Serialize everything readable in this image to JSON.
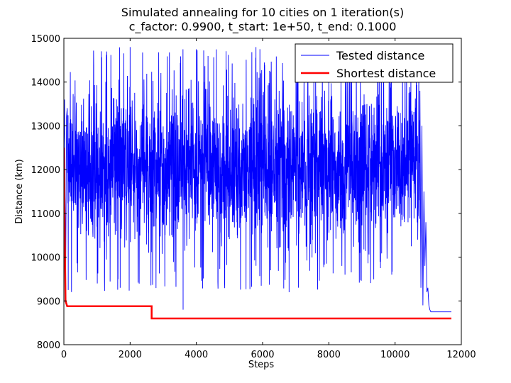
{
  "chart_data": {
    "type": "line",
    "title": "Simulated annealing for 10 cities on 1 iteration(s)",
    "subtitle": "c_factor: 0.9900, t_start: 1e+50, t_end: 0.1000",
    "xlabel": "Steps",
    "ylabel": "Distance (km)",
    "xlim": [
      0,
      12000
    ],
    "ylim": [
      8000,
      15000
    ],
    "x_ticks": [
      "0",
      "2000",
      "4000",
      "6000",
      "8000",
      "10000",
      "12000"
    ],
    "y_ticks": [
      "8000",
      "9000",
      "10000",
      "11000",
      "12000",
      "13000",
      "14000",
      "15000"
    ],
    "grid": false,
    "legend_position": "top-right",
    "series": [
      {
        "name": "Tested distance",
        "color": "#0000ff",
        "style": "noisy",
        "x_range": [
          0,
          11700
        ],
        "noise_band": [
          9200,
          14800
        ],
        "typical_band": [
          10500,
          13700
        ],
        "converge_start": 10750,
        "converged_value": 8750,
        "approx_points": [
          [
            0,
            12500
          ],
          [
            50,
            9000
          ],
          [
            100,
            13700
          ],
          [
            2000,
            14800
          ],
          [
            3600,
            8800
          ],
          [
            5800,
            14800
          ],
          [
            6800,
            9200
          ],
          [
            10700,
            14000
          ],
          [
            10850,
            8900
          ],
          [
            11000,
            8750
          ],
          [
            11700,
            8750
          ]
        ]
      },
      {
        "name": "Shortest distance",
        "color": "#ff0000",
        "style": "step",
        "x": [
          0,
          50,
          100,
          2650,
          2650,
          11700
        ],
        "y": [
          12500,
          9000,
          8880,
          8880,
          8600,
          8600
        ]
      }
    ]
  }
}
